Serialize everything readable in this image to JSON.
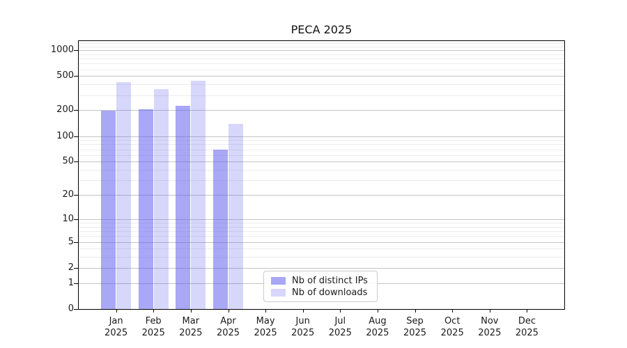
{
  "figure": {
    "title": "PECA 2025"
  },
  "chart_data": {
    "type": "bar",
    "title": "PECA 2025",
    "categories": [
      "Jan 2025",
      "Feb 2025",
      "Mar 2025",
      "Apr 2025",
      "May 2025",
      "Jun 2025",
      "Jul 2025",
      "Aug 2025",
      "Sep 2025",
      "Oct 2025",
      "Nov 2025",
      "Dec 2025"
    ],
    "series": [
      {
        "name": "Nb of distinct IPs",
        "color": "rgba(88,88,238,0.52)",
        "swatch_hex": "#aaaaf2",
        "values": [
          197,
          204,
          227,
          69,
          null,
          null,
          null,
          null,
          null,
          null,
          null,
          null
        ]
      },
      {
        "name": "Nb of downloads",
        "color": "rgba(88,88,238,0.24)",
        "swatch_hex": "#d9d9f9",
        "values": [
          424,
          352,
          442,
          139,
          null,
          null,
          null,
          null,
          null,
          null,
          null,
          null
        ]
      }
    ],
    "xlabel": "",
    "ylabel": "",
    "yscale": "log1p",
    "ylim": [
      0,
      1270
    ],
    "yticks": [
      0,
      1,
      2,
      5,
      10,
      20,
      50,
      100,
      200,
      500,
      1000
    ],
    "yticks_minor": [
      3,
      4,
      6,
      7,
      8,
      9,
      30,
      40,
      60,
      70,
      80,
      90,
      300,
      400,
      600,
      700,
      800,
      900,
      1100,
      1200
    ],
    "grid": true,
    "legend_position": "inside-bottom-center"
  },
  "colors": {
    "grid_major": "#c4c4c4",
    "grid_minor": "#ececec",
    "spine": "#000000",
    "text": "#1a1a1a",
    "background": "#ffffff"
  }
}
